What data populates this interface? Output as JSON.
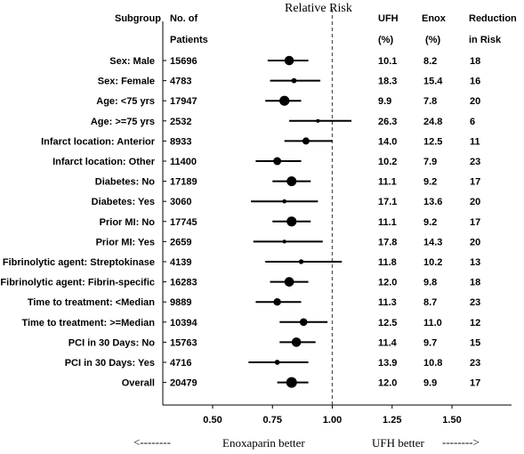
{
  "headers": {
    "subgroup": "Subgroup",
    "patients_line1": "No. of",
    "patients_line2": "Patients",
    "ufh": "UFH",
    "ufh_unit": "(%)",
    "enox": "Enox",
    "enox_unit": "(%)",
    "reduction_line1": "Reduction",
    "reduction_line2": "in Risk"
  },
  "footer": {
    "left_arrow": "<--------",
    "left": "Enoxaparin better",
    "right": "UFH  better",
    "right_arrow": "-------->"
  },
  "chart_data": {
    "type": "forest",
    "title": "Relative Risk",
    "xlim": [
      0.25,
      1.75
    ],
    "xticks": [
      "0.50",
      "0.75",
      "1.00",
      "1.25",
      "1.50"
    ],
    "reference_line": 1.0,
    "rows": [
      {
        "subgroup": "Sex: Male",
        "patients": "15696",
        "rr": 0.82,
        "lo": 0.73,
        "hi": 0.9,
        "ufh": "10.1",
        "enox": "8.2",
        "reduction": "18"
      },
      {
        "subgroup": "Sex: Female",
        "patients": "4783",
        "rr": 0.84,
        "lo": 0.74,
        "hi": 0.95,
        "ufh": "18.3",
        "enox": "15.4",
        "reduction": "16"
      },
      {
        "subgroup": "Age: <75 yrs",
        "patients": "17947",
        "rr": 0.8,
        "lo": 0.72,
        "hi": 0.87,
        "ufh": "9.9",
        "enox": "7.8",
        "reduction": "20"
      },
      {
        "subgroup": "Age: >=75 yrs",
        "patients": "2532",
        "rr": 0.94,
        "lo": 0.82,
        "hi": 1.08,
        "ufh": "26.3",
        "enox": "24.8",
        "reduction": "6"
      },
      {
        "subgroup": "Infarct location: Anterior",
        "patients": "8933",
        "rr": 0.89,
        "lo": 0.8,
        "hi": 1.0,
        "ufh": "14.0",
        "enox": "12.5",
        "reduction": "11"
      },
      {
        "subgroup": "Infarct location: Other",
        "patients": "11400",
        "rr": 0.77,
        "lo": 0.68,
        "hi": 0.87,
        "ufh": "10.2",
        "enox": "7.9",
        "reduction": "23"
      },
      {
        "subgroup": "Diabetes: No",
        "patients": "17189",
        "rr": 0.83,
        "lo": 0.75,
        "hi": 0.91,
        "ufh": "11.1",
        "enox": "9.2",
        "reduction": "17"
      },
      {
        "subgroup": "Diabetes: Yes",
        "patients": "3060",
        "rr": 0.8,
        "lo": 0.66,
        "hi": 0.94,
        "ufh": "17.1",
        "enox": "13.6",
        "reduction": "20"
      },
      {
        "subgroup": "Prior MI: No",
        "patients": "17745",
        "rr": 0.83,
        "lo": 0.75,
        "hi": 0.91,
        "ufh": "11.1",
        "enox": "9.2",
        "reduction": "17"
      },
      {
        "subgroup": "Prior MI: Yes",
        "patients": "2659",
        "rr": 0.8,
        "lo": 0.67,
        "hi": 0.96,
        "ufh": "17.8",
        "enox": "14.3",
        "reduction": "20"
      },
      {
        "subgroup": "Fibrinolytic agent: Streptokinase",
        "patients": "4139",
        "rr": 0.87,
        "lo": 0.72,
        "hi": 1.04,
        "ufh": "11.8",
        "enox": "10.2",
        "reduction": "13"
      },
      {
        "subgroup": "Fibrinolytic agent: Fibrin-specific",
        "patients": "16283",
        "rr": 0.82,
        "lo": 0.74,
        "hi": 0.9,
        "ufh": "12.0",
        "enox": "9.8",
        "reduction": "18"
      },
      {
        "subgroup": "Time to treatment: <Median",
        "patients": "9889",
        "rr": 0.77,
        "lo": 0.68,
        "hi": 0.87,
        "ufh": "11.3",
        "enox": "8.7",
        "reduction": "23"
      },
      {
        "subgroup": "Time to treatment: >=Median",
        "patients": "10394",
        "rr": 0.88,
        "lo": 0.78,
        "hi": 0.98,
        "ufh": "12.5",
        "enox": "11.0",
        "reduction": "12"
      },
      {
        "subgroup": "PCI in 30 Days: No",
        "patients": "15763",
        "rr": 0.85,
        "lo": 0.78,
        "hi": 0.93,
        "ufh": "11.4",
        "enox": "9.7",
        "reduction": "15"
      },
      {
        "subgroup": "PCI in 30 Days: Yes",
        "patients": "4716",
        "rr": 0.77,
        "lo": 0.65,
        "hi": 0.9,
        "ufh": "13.9",
        "enox": "10.8",
        "reduction": "23"
      },
      {
        "subgroup": "Overall",
        "patients": "20479",
        "rr": 0.83,
        "lo": 0.77,
        "hi": 0.9,
        "ufh": "12.0",
        "enox": "9.9",
        "reduction": "17"
      }
    ]
  }
}
